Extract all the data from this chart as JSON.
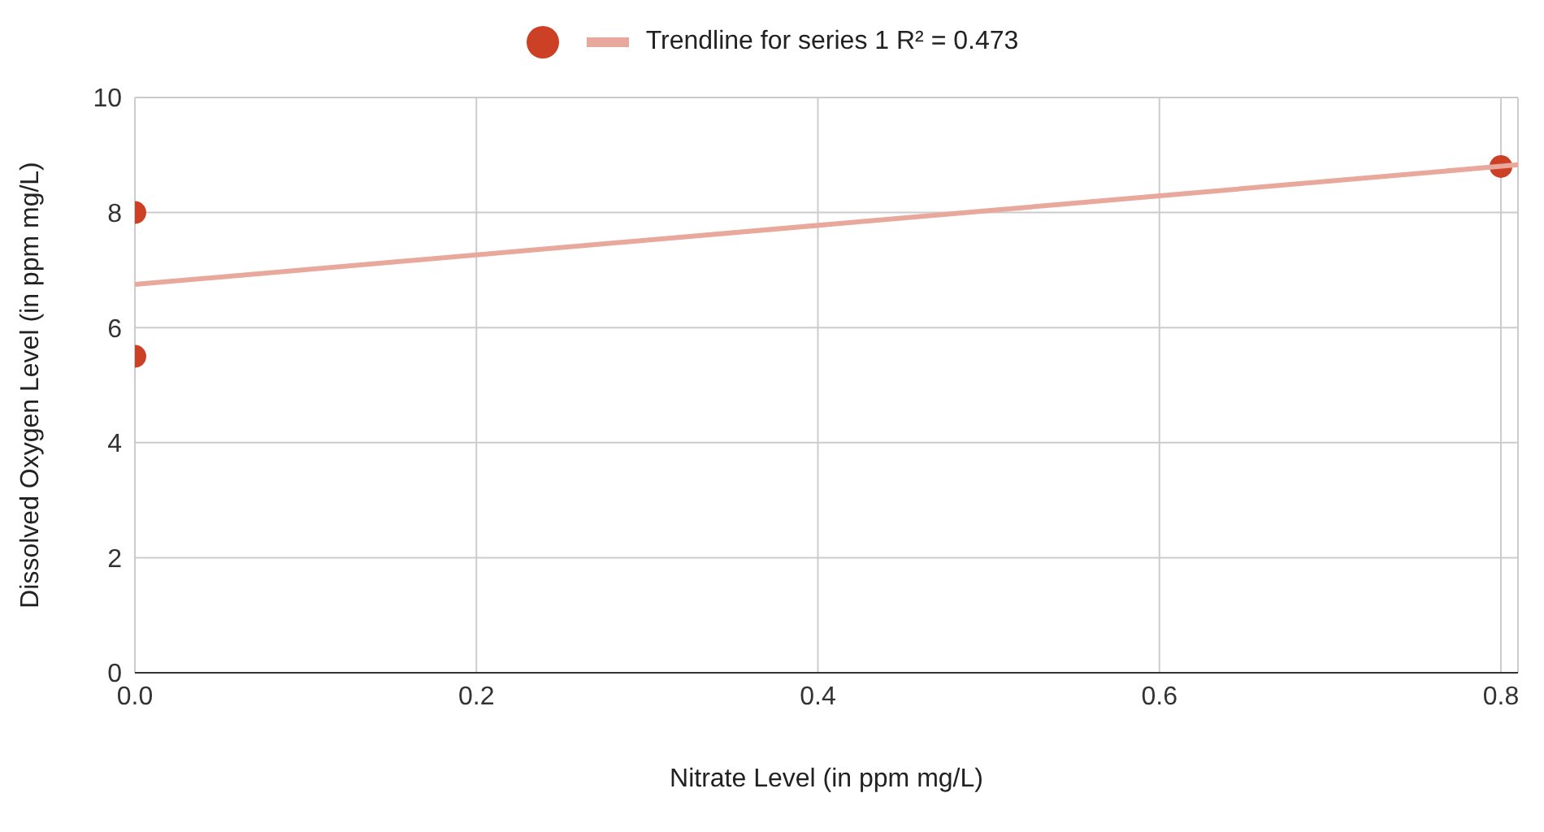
{
  "chart_data": {
    "type": "scatter",
    "xlabel": "Nitrate Level (in ppm mg/L)",
    "ylabel": "Dissolved Oxygen Level (in ppm mg/L)",
    "series": [
      {
        "color": "#cc4125",
        "marker": "circle",
        "x": [
          0,
          0,
          0.8
        ],
        "values": [
          8,
          5.5,
          8.8
        ]
      },
      {
        "type": "line",
        "marker": "none",
        "name": "Trendline for series 1 R² = 0.473",
        "color": "#e8a89c",
        "x": [
          0,
          0.81
        ],
        "values": [
          6.75,
          8.83
        ]
      }
    ],
    "xlim": [
      0,
      0.81
    ],
    "xticks": [
      {
        "value": 0,
        "label": "0.0"
      },
      {
        "value": 0.2,
        "label": "0.2"
      },
      {
        "value": 0.4,
        "label": "0.4"
      },
      {
        "value": 0.6,
        "label": "0.6"
      },
      {
        "value": 0.8,
        "label": "0.8"
      }
    ],
    "ylim": [
      0,
      10
    ],
    "yticks": [
      0,
      2,
      4,
      6,
      8,
      10
    ],
    "grid": true,
    "legend": "top"
  }
}
